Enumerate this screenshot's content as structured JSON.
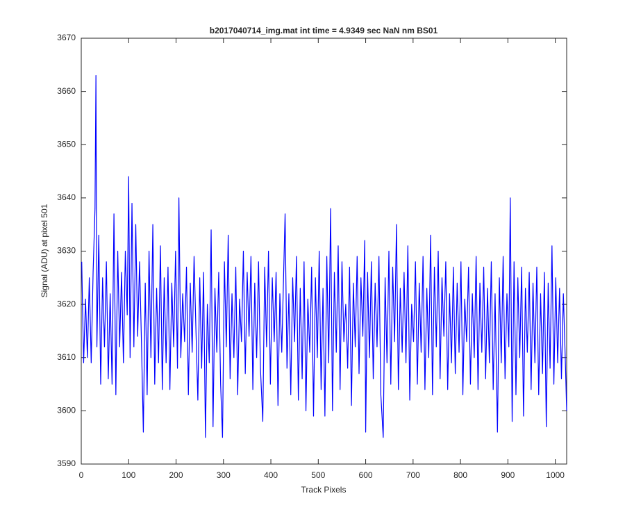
{
  "chart_data": {
    "type": "line",
    "title": "b2017040714_img.mat int time = 4.9349 sec  NaN nm BS01",
    "xlabel": "Track Pixels",
    "ylabel": "Signal (ADU) at pixel 501",
    "xlim": [
      0,
      1024
    ],
    "ylim": [
      3590,
      3670
    ],
    "xticks": [
      0,
      100,
      200,
      300,
      400,
      500,
      600,
      700,
      800,
      900,
      1000
    ],
    "yticks": [
      3590,
      3600,
      3610,
      3620,
      3630,
      3640,
      3650,
      3660,
      3670
    ],
    "grid": false,
    "x": [
      1,
      5,
      9,
      13,
      17,
      21,
      25,
      29,
      31,
      33,
      37,
      41,
      45,
      49,
      53,
      57,
      61,
      65,
      69,
      73,
      77,
      81,
      85,
      89,
      93,
      97,
      100,
      103,
      107,
      111,
      115,
      119,
      123,
      127,
      131,
      135,
      139,
      143,
      147,
      151,
      155,
      159,
      163,
      167,
      171,
      175,
      179,
      183,
      187,
      191,
      195,
      199,
      203,
      206,
      210,
      214,
      218,
      222,
      226,
      230,
      234,
      238,
      242,
      246,
      250,
      254,
      258,
      262,
      266,
      270,
      274,
      278,
      282,
      286,
      290,
      294,
      298,
      302,
      306,
      310,
      314,
      318,
      322,
      326,
      330,
      334,
      338,
      342,
      346,
      350,
      354,
      358,
      362,
      366,
      370,
      374,
      378,
      383,
      387,
      391,
      395,
      399,
      403,
      407,
      411,
      415,
      419,
      423,
      427,
      430,
      434,
      438,
      442,
      446,
      450,
      454,
      458,
      462,
      466,
      470,
      474,
      478,
      482,
      486,
      490,
      494,
      498,
      502,
      506,
      510,
      514,
      518,
      522,
      526,
      530,
      534,
      538,
      542,
      546,
      550,
      554,
      558,
      562,
      566,
      570,
      574,
      578,
      582,
      586,
      590,
      594,
      598,
      600,
      604,
      608,
      612,
      616,
      620,
      624,
      628,
      632,
      637,
      641,
      645,
      649,
      653,
      657,
      661,
      665,
      669,
      673,
      677,
      681,
      685,
      689,
      693,
      697,
      701,
      705,
      709,
      713,
      717,
      721,
      725,
      729,
      733,
      737,
      741,
      745,
      749,
      753,
      757,
      761,
      765,
      769,
      773,
      777,
      781,
      785,
      789,
      793,
      797,
      801,
      805,
      809,
      813,
      817,
      821,
      825,
      829,
      833,
      837,
      841,
      845,
      849,
      853,
      857,
      861,
      865,
      869,
      873,
      878,
      882,
      886,
      890,
      894,
      898,
      902,
      905,
      909,
      913,
      917,
      921,
      925,
      929,
      933,
      937,
      941,
      945,
      949,
      953,
      957,
      961,
      965,
      969,
      973,
      977,
      981,
      985,
      989,
      993,
      997,
      1001,
      1005,
      1009,
      1013,
      1017,
      1021,
      1024
    ],
    "series": [
      {
        "color": "#0000ff",
        "values": [
          3628,
          3609,
          3621,
          3610,
          3625,
          3609,
          3626,
          3638,
          3663,
          3612,
          3633,
          3605,
          3625,
          3612,
          3628,
          3606,
          3622,
          3605,
          3637,
          3603,
          3630,
          3612,
          3626,
          3609,
          3630,
          3618,
          3644,
          3610,
          3639,
          3612,
          3635,
          3614,
          3628,
          3613,
          3596,
          3624,
          3603,
          3630,
          3610,
          3635,
          3605,
          3623,
          3609,
          3631,
          3604,
          3625,
          3609,
          3627,
          3604,
          3624,
          3612,
          3630,
          3608,
          3640,
          3610,
          3622,
          3613,
          3627,
          3603,
          3624,
          3611,
          3629,
          3615,
          3602,
          3625,
          3608,
          3626,
          3595,
          3620,
          3609,
          3634,
          3597,
          3623,
          3611,
          3626,
          3605,
          3595,
          3628,
          3612,
          3633,
          3606,
          3622,
          3610,
          3627,
          3603,
          3621,
          3613,
          3630,
          3607,
          3626,
          3614,
          3629,
          3604,
          3624,
          3610,
          3628,
          3608,
          3598,
          3627,
          3612,
          3630,
          3605,
          3625,
          3613,
          3626,
          3601,
          3622,
          3611,
          3626,
          3637,
          3608,
          3622,
          3603,
          3625,
          3613,
          3629,
          3602,
          3623,
          3606,
          3628,
          3600,
          3621,
          3611,
          3627,
          3599,
          3625,
          3610,
          3630,
          3604,
          3623,
          3599,
          3629,
          3609,
          3638,
          3600,
          3626,
          3611,
          3631,
          3604,
          3628,
          3613,
          3620,
          3608,
          3627,
          3601,
          3624,
          3612,
          3629,
          3607,
          3625,
          3614,
          3632,
          3596,
          3626,
          3610,
          3628,
          3606,
          3624,
          3612,
          3629,
          3603,
          3595,
          3625,
          3609,
          3630,
          3605,
          3627,
          3613,
          3635,
          3604,
          3623,
          3611,
          3626,
          3609,
          3631,
          3602,
          3620,
          3613,
          3628,
          3605,
          3624,
          3611,
          3629,
          3604,
          3623,
          3610,
          3633,
          3603,
          3627,
          3612,
          3630,
          3606,
          3625,
          3614,
          3628,
          3604,
          3622,
          3609,
          3627,
          3607,
          3624,
          3611,
          3628,
          3603,
          3621,
          3613,
          3627,
          3605,
          3622,
          3610,
          3629,
          3604,
          3624,
          3611,
          3627,
          3606,
          3623,
          3609,
          3628,
          3604,
          3622,
          3596,
          3625,
          3609,
          3629,
          3606,
          3622,
          3612,
          3640,
          3598,
          3628,
          3603,
          3625,
          3610,
          3627,
          3599,
          3623,
          3611,
          3626,
          3604,
          3624,
          3609,
          3627,
          3603,
          3622,
          3607,
          3626,
          3597,
          3624,
          3608,
          3631,
          3605,
          3625,
          3609,
          3623,
          3606,
          3622,
          3610,
          3600
        ]
      }
    ]
  }
}
